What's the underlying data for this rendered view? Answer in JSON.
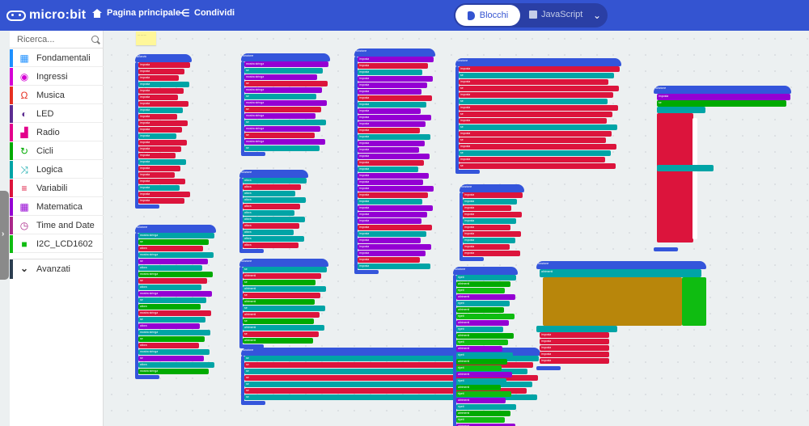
{
  "header": {
    "brand": "micro:bit",
    "home_label": "Pagina principale",
    "share_label": "Condividi",
    "blocks_label": "Blocchi",
    "javascript_label": "JavaScript",
    "bg_color": "#3454d1"
  },
  "toolbox": {
    "search_placeholder": "Ricerca...",
    "categories": [
      {
        "label": "Fondamentali",
        "color": "#1e90ff",
        "icon": "grid-icon"
      },
      {
        "label": "Ingressi",
        "color": "#d400d4",
        "icon": "target-icon"
      },
      {
        "label": "Musica",
        "color": "#e63022",
        "icon": "headphones-icon"
      },
      {
        "label": "LED",
        "color": "#5c2d91",
        "icon": "toggle-icon"
      },
      {
        "label": "Radio",
        "color": "#e3008c",
        "icon": "signal-bars-icon"
      },
      {
        "label": "Cicli",
        "color": "#00aa00",
        "icon": "loop-icon"
      },
      {
        "label": "Logica",
        "color": "#00a4a6",
        "icon": "shuffle-icon"
      },
      {
        "label": "Variabili",
        "color": "#dc143c",
        "icon": "lines-icon"
      },
      {
        "label": "Matematica",
        "color": "#9400d3",
        "icon": "calculator-icon"
      },
      {
        "label": "Time and Date",
        "color": "#aa278a",
        "icon": "clock-icon"
      },
      {
        "label": "I2C_LCD1602",
        "color": "#0fbc11",
        "icon": "square-icon"
      }
    ],
    "advanced_label": "Avanzati"
  },
  "workspace": {
    "note_text": "— — —",
    "block_colors": {
      "function": "#3455db",
      "variable": "#dc143c",
      "logic": "#00a4a6",
      "loop": "#00aa00",
      "lcd": "#0fbc11",
      "math": "#9400d3",
      "text": "#b8860b"
    },
    "visible_block_text": [
      "all'avvio",
      "imposta",
      "mostra stringa",
      "se",
      "allora",
      "altrimenti",
      "ripeti",
      "funzione",
      "chiama",
      "fissa"
    ]
  }
}
